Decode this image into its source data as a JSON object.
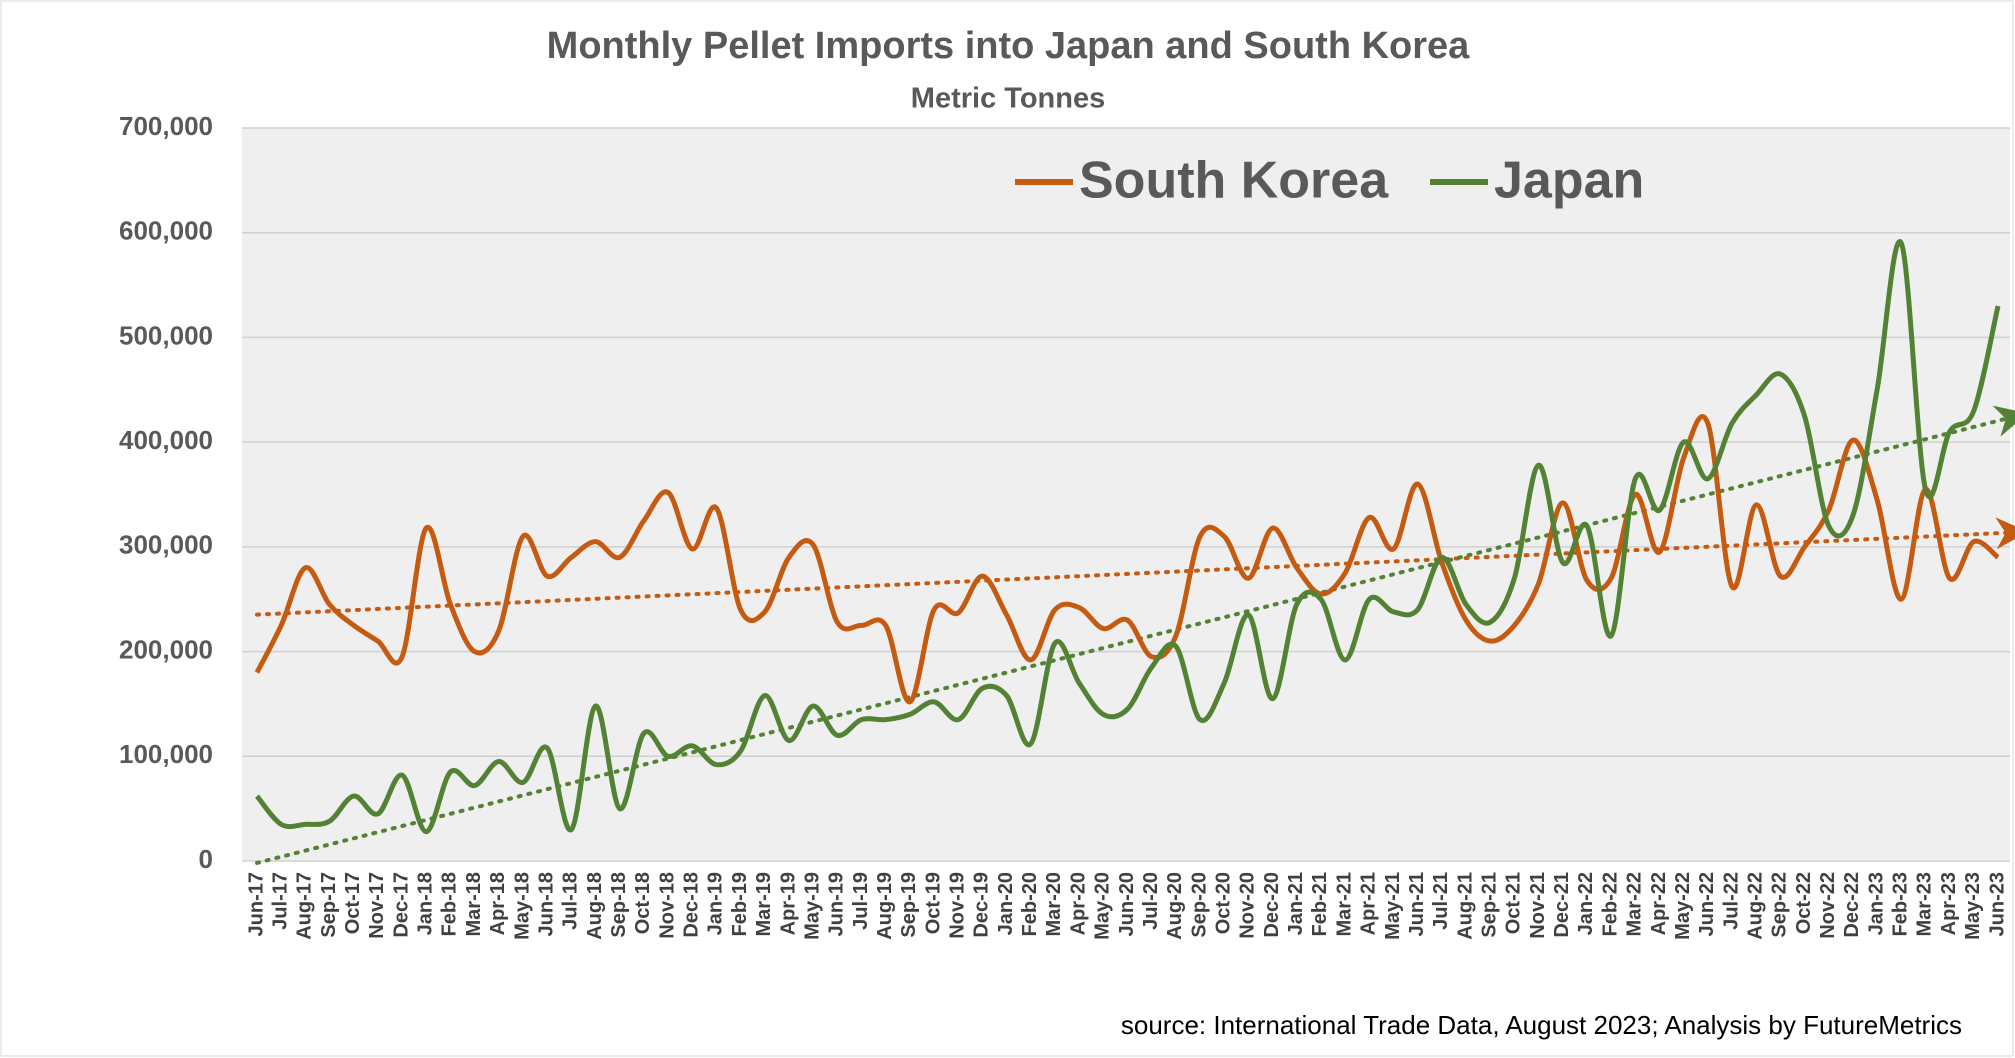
{
  "chart_data": {
    "type": "line",
    "title": "Monthly Pellet Imports into Japan and South Korea",
    "subtitle": "Metric Tonnes",
    "source": "source: International Trade Data, August 2023; Analysis by FutureMetrics",
    "categories": [
      "Jun-17",
      "Jul-17",
      "Aug-17",
      "Sep-17",
      "Oct-17",
      "Nov-17",
      "Dec-17",
      "Jan-18",
      "Feb-18",
      "Mar-18",
      "Apr-18",
      "May-18",
      "Jun-18",
      "Jul-18",
      "Aug-18",
      "Sep-18",
      "Oct-18",
      "Nov-18",
      "Dec-18",
      "Jan-19",
      "Feb-19",
      "Mar-19",
      "Apr-19",
      "May-19",
      "Jun-19",
      "Jul-19",
      "Aug-19",
      "Sep-19",
      "Oct-19",
      "Nov-19",
      "Dec-19",
      "Jan-20",
      "Feb-20",
      "Mar-20",
      "Apr-20",
      "May-20",
      "Jun-20",
      "Jul-20",
      "Aug-20",
      "Sep-20",
      "Oct-20",
      "Nov-20",
      "Dec-20",
      "Jan-21",
      "Feb-21",
      "Mar-21",
      "Apr-21",
      "May-21",
      "Jun-21",
      "Jul-21",
      "Aug-21",
      "Sep-21",
      "Oct-21",
      "Nov-21",
      "Dec-21",
      "Jan-22",
      "Feb-22",
      "Mar-22",
      "Apr-22",
      "May-22",
      "Jun-22",
      "Jul-22",
      "Aug-22",
      "Sep-22",
      "Oct-22",
      "Nov-22",
      "Dec-22",
      "Jan-23",
      "Feb-23",
      "Mar-23",
      "Apr-23",
      "May-23",
      "Jun-23"
    ],
    "series": [
      {
        "name": "South Korea",
        "color": "#c55a11",
        "values": [
          180000,
          225000,
          280000,
          245000,
          225000,
          210000,
          195000,
          318000,
          245000,
          200000,
          220000,
          310000,
          272000,
          290000,
          305000,
          290000,
          325000,
          352000,
          298000,
          337000,
          240000,
          238000,
          290000,
          302000,
          228000,
          225000,
          225000,
          152000,
          240000,
          237000,
          272000,
          235000,
          192000,
          240000,
          242000,
          222000,
          230000,
          195000,
          215000,
          310000,
          310000,
          270000,
          318000,
          280000,
          255000,
          275000,
          328000,
          298000,
          360000,
          285000,
          230000,
          210000,
          225000,
          265000,
          342000,
          268000,
          270000,
          350000,
          295000,
          385000,
          418000,
          262000,
          340000,
          272000,
          300000,
          335000,
          402000,
          345000,
          250000,
          355000,
          270000,
          305000,
          290000
        ]
      },
      {
        "name": "Japan",
        "color": "#548235",
        "values": [
          62000,
          35000,
          35000,
          38000,
          62000,
          45000,
          82000,
          28000,
          85000,
          72000,
          95000,
          75000,
          108000,
          30000,
          148000,
          50000,
          122000,
          100000,
          110000,
          92000,
          105000,
          158000,
          115000,
          148000,
          120000,
          135000,
          135000,
          140000,
          152000,
          135000,
          165000,
          158000,
          112000,
          208000,
          170000,
          140000,
          145000,
          185000,
          205000,
          135000,
          170000,
          235000,
          155000,
          245000,
          250000,
          192000,
          250000,
          238000,
          240000,
          290000,
          245000,
          228000,
          270000,
          378000,
          285000,
          320000,
          215000,
          365000,
          335000,
          400000,
          365000,
          418000,
          445000,
          465000,
          425000,
          320000,
          330000,
          450000,
          590000,
          355000,
          410000,
          430000,
          530000
        ]
      }
    ],
    "ylim": [
      0,
      700000
    ],
    "yticks": [
      0,
      {
        "value": 100000,
        "label": "100,000"
      },
      {
        "value": 200000,
        "label": "200,000"
      },
      {
        "value": 300000,
        "label": "300,000"
      },
      {
        "value": 400000,
        "label": "400,000"
      },
      {
        "value": 500000,
        "label": "500,000"
      },
      {
        "value": 600000,
        "label": "600,000"
      },
      {
        "value": 700000,
        "label": "700,000"
      }
    ],
    "grid": true,
    "trendline": true,
    "legend": "top"
  }
}
